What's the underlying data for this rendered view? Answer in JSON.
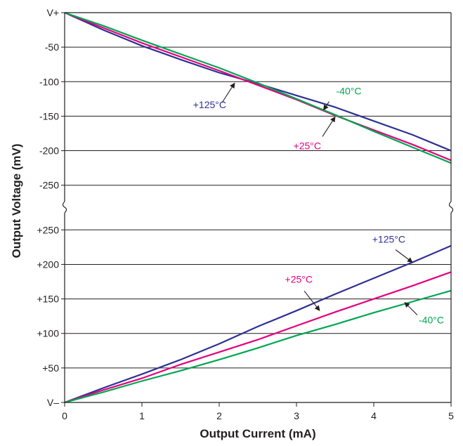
{
  "chart_data": {
    "type": "line",
    "xlabel": "Output Current (mA)",
    "ylabel": "Output Voltage (mV)",
    "xlim": [
      0,
      5
    ],
    "x_ticks": [
      "0",
      "1",
      "2",
      "3",
      "4",
      "5"
    ],
    "grid": true,
    "panels": [
      {
        "name": "top",
        "ylim": [
          -290,
          0
        ],
        "y_ticks": [
          {
            "value": 0,
            "label": "V+"
          },
          {
            "value": -50,
            "label": "-50"
          },
          {
            "value": -100,
            "label": "-100"
          },
          {
            "value": -150,
            "label": "-150"
          },
          {
            "value": -200,
            "label": "-200"
          },
          {
            "value": -250,
            "label": "-250"
          }
        ],
        "series": [
          {
            "name": "+125°C",
            "color": "#2e3192",
            "x": [
              0,
              0.5,
              1,
              1.5,
              2,
              2.5,
              3,
              3.5,
              4,
              4.5,
              5
            ],
            "y": [
              0,
              -25,
              -48,
              -68,
              -87,
              -103,
              -120,
              -137,
              -157,
              -177,
              -200
            ]
          },
          {
            "name": "+25°C",
            "color": "#e6007e",
            "x": [
              0,
              0.5,
              1,
              1.5,
              2,
              2.5,
              3,
              3.5,
              4,
              4.5,
              5
            ],
            "y": [
              0,
              -22,
              -44,
              -64,
              -84,
              -105,
              -126,
              -149,
              -170,
              -191,
              -214
            ]
          },
          {
            "name": "-40°C",
            "color": "#00a651",
            "x": [
              0,
              0.5,
              1,
              1.5,
              2,
              2.5,
              3,
              3.5,
              4,
              4.5,
              5
            ],
            "y": [
              0,
              -19,
              -40,
              -60,
              -80,
              -102,
              -125,
              -148,
              -172,
              -195,
              -218
            ]
          }
        ],
        "annotations": [
          {
            "label": "+125°C",
            "series": "+125°C",
            "x": 2.2,
            "y": -102
          },
          {
            "label": "-40°C",
            "series": "-40°C",
            "x": 3.35,
            "y": -141
          },
          {
            "label": "+25°C",
            "series": "+25°C",
            "x": 3.5,
            "y": -151
          }
        ]
      },
      {
        "name": "bottom",
        "ylim": [
          0,
          290
        ],
        "y_ticks": [
          {
            "value": 0,
            "label": "V–"
          },
          {
            "value": 50,
            "label": "+50"
          },
          {
            "value": 100,
            "label": "+100"
          },
          {
            "value": 150,
            "label": "+150"
          },
          {
            "value": 200,
            "label": "+200"
          },
          {
            "value": 250,
            "label": "+250"
          }
        ],
        "series": [
          {
            "name": "+125°C",
            "color": "#2e3192",
            "x": [
              0,
              0.5,
              1,
              1.5,
              2,
              2.5,
              3,
              3.5,
              4,
              4.5,
              5
            ],
            "y": [
              0,
              21,
              41,
              62,
              85,
              110,
              133,
              157,
              180,
              203,
              227
            ]
          },
          {
            "name": "+25°C",
            "color": "#e6007e",
            "x": [
              0,
              0.5,
              1,
              1.5,
              2,
              2.5,
              3,
              3.5,
              4,
              4.5,
              5
            ],
            "y": [
              0,
              18,
              35,
              55,
              73,
              91,
              111,
              131,
              150,
              169,
              189
            ]
          },
          {
            "name": "-40°C",
            "color": "#00a651",
            "x": [
              0,
              0.5,
              1,
              1.5,
              2,
              2.5,
              3,
              3.5,
              4,
              4.5,
              5
            ],
            "y": [
              0,
              15,
              31,
              46,
              62,
              79,
              97,
              113,
              130,
              146,
              162
            ]
          }
        ],
        "annotations": [
          {
            "label": "+125°C",
            "series": "+125°C",
            "x": 4.5,
            "y": 203
          },
          {
            "label": "+25°C",
            "series": "+25°C",
            "x": 3.3,
            "y": 133
          },
          {
            "label": "-40°C",
            "series": "-40°C",
            "x": 4.4,
            "y": 145
          }
        ]
      }
    ]
  }
}
